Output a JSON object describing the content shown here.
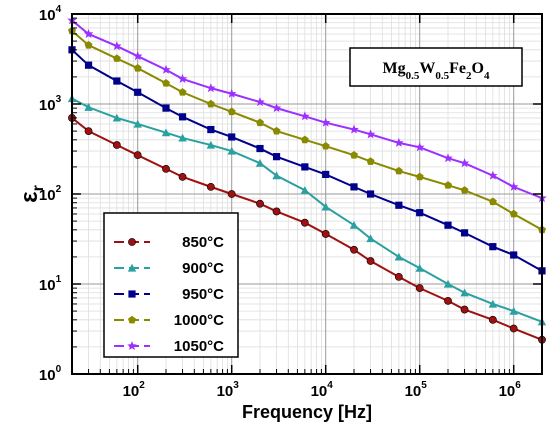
{
  "chart_data": {
    "type": "line",
    "xscale": "log",
    "yscale": "log",
    "xlim": [
      20,
      2000000
    ],
    "ylim": [
      1,
      10000
    ],
    "xlabel": "Frequency [Hz]",
    "ylabel": "ε",
    "ylabel_sub": "r",
    "x_ticks": [
      "10",
      "10",
      "10",
      "10",
      "10"
    ],
    "x_tick_exps": [
      "2",
      "3",
      "4",
      "5",
      "6"
    ],
    "y_ticks": [
      "10",
      "10",
      "10",
      "10",
      "10"
    ],
    "y_tick_exps": [
      "0",
      "1",
      "2",
      "3",
      "4"
    ],
    "grid": true,
    "legend_position": "bottom-left",
    "annotation": {
      "parts": [
        {
          "text": "Mg"
        },
        {
          "text": "0.5",
          "sub": true
        },
        {
          "text": "W"
        },
        {
          "text": "0.5",
          "sub": true
        },
        {
          "text": "Fe"
        },
        {
          "text": "2",
          "sub": true
        },
        {
          "text": "O"
        },
        {
          "text": "4",
          "sub": true
        }
      ]
    },
    "x": [
      20,
      30,
      60,
      100,
      200,
      300,
      600,
      1000,
      2000,
      3000,
      6000,
      10000,
      20000,
      30000,
      60000,
      100000,
      200000,
      300000,
      600000,
      1000000,
      2000000
    ],
    "series": [
      {
        "name": "850°C",
        "color": "#a01010",
        "marker": "circle",
        "values": [
          700,
          500,
          350,
          270,
          190,
          155,
          120,
          100,
          78,
          64,
          48,
          36,
          24,
          18,
          12,
          9,
          6.5,
          5.2,
          4,
          3.2,
          2.4
        ]
      },
      {
        "name": "900°C",
        "color": "#2aa0a0",
        "marker": "triangle",
        "values": [
          1150,
          920,
          700,
          600,
          480,
          420,
          350,
          300,
          220,
          160,
          110,
          72,
          45,
          32,
          20,
          15,
          10,
          8,
          6,
          5,
          3.8
        ]
      },
      {
        "name": "950°C",
        "color": "#00008b",
        "marker": "square",
        "values": [
          4000,
          2700,
          1800,
          1350,
          900,
          720,
          520,
          430,
          320,
          260,
          200,
          165,
          120,
          100,
          75,
          62,
          45,
          37,
          26,
          21,
          14
        ]
      },
      {
        "name": "1000°C",
        "color": "#8a8a00",
        "marker": "pentagon",
        "values": [
          6500,
          4500,
          3200,
          2500,
          1700,
          1350,
          1000,
          820,
          620,
          500,
          400,
          340,
          270,
          230,
          180,
          155,
          125,
          110,
          82,
          60,
          40
        ]
      },
      {
        "name": "1050°C",
        "color": "#9b30ff",
        "marker": "star",
        "values": [
          8500,
          6000,
          4400,
          3400,
          2400,
          1900,
          1500,
          1300,
          1050,
          900,
          730,
          620,
          520,
          460,
          370,
          330,
          250,
          220,
          160,
          120,
          90
        ]
      }
    ]
  }
}
